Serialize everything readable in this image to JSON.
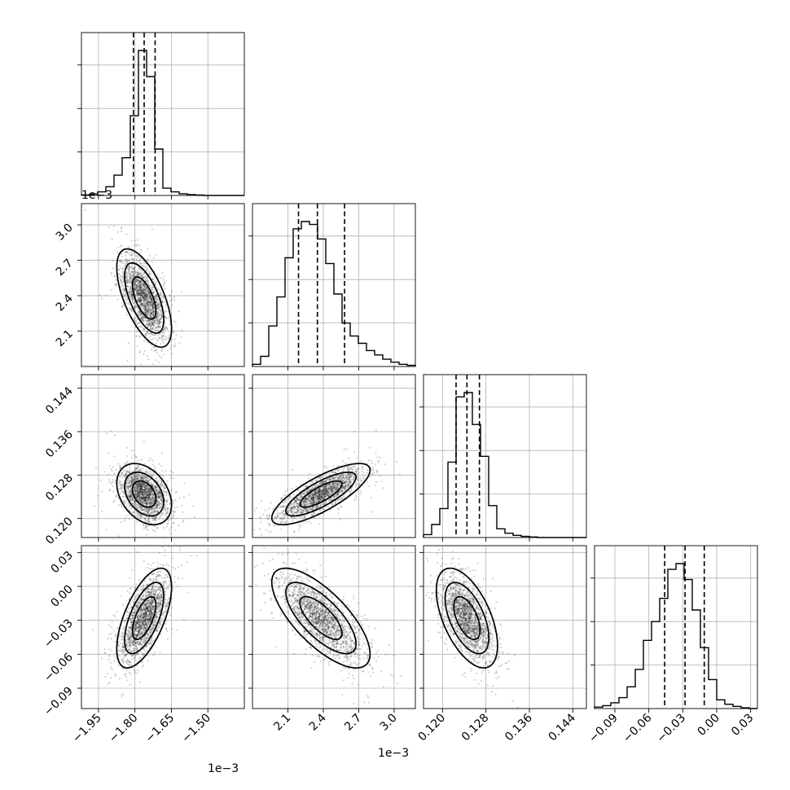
{
  "chart_data": {
    "type": "corner",
    "parameters": [
      {
        "range": [
          -2.02,
          -1.35
        ],
        "ticks": [
          -1.95,
          -1.8,
          -1.65,
          -1.5
        ],
        "tick_labels": [
          "−1.95",
          "−1.80",
          "−1.65",
          "−1.50"
        ],
        "offset_text": "1e−3",
        "mean": -1.762,
        "sd": 0.046,
        "rho_with_next_scale": 1,
        "quantiles": [
          -1.806,
          -1.762,
          -1.717
        ]
      },
      {
        "range": [
          1.8,
          3.18
        ],
        "ticks": [
          2.1,
          2.4,
          2.7,
          3.0
        ],
        "tick_labels": [
          "2.1",
          "2.4",
          "2.7",
          "3.0"
        ],
        "offset_text": "1e−3",
        "mean": 2.38,
        "sd": 0.17,
        "quantiles": [
          2.19,
          2.35,
          2.58
        ]
      },
      {
        "range": [
          0.1165,
          0.1465
        ],
        "ticks": [
          0.12,
          0.128,
          0.136,
          0.144
        ],
        "tick_labels": [
          "0.120",
          "0.128",
          "0.136",
          "0.144"
        ],
        "offset_text": "",
        "mean": 0.1245,
        "sd": 0.0023,
        "quantiles": [
          0.1225,
          0.1245,
          0.1268
        ]
      },
      {
        "range": [
          -0.108,
          0.036
        ],
        "ticks": [
          -0.09,
          -0.06,
          -0.03,
          0.0,
          0.03
        ],
        "tick_labels": [
          "−0.09",
          "−0.06",
          "−0.03",
          "0.00",
          "0.03"
        ],
        "offset_text": "",
        "mean": -0.028,
        "sd": 0.018,
        "quantiles": [
          -0.046,
          -0.028,
          -0.011
        ]
      }
    ],
    "correlations": [
      [
        1.0,
        -0.62,
        -0.35,
        0.62
      ],
      [
        -0.62,
        1.0,
        0.78,
        -0.72
      ],
      [
        -0.35,
        0.78,
        1.0,
        -0.55
      ],
      [
        0.62,
        -0.72,
        -0.55,
        1.0
      ]
    ],
    "histograms": [
      [
        0.004,
        0.01,
        0.025,
        0.06,
        0.14,
        0.26,
        0.55,
        1.0,
        0.82,
        0.32,
        0.05,
        0.025,
        0.012,
        0.006,
        0.003,
        0,
        0,
        0,
        0,
        0
      ],
      [
        0.015,
        0.07,
        0.28,
        0.48,
        0.75,
        0.95,
        1.0,
        0.98,
        0.88,
        0.71,
        0.5,
        0.3,
        0.21,
        0.16,
        0.11,
        0.08,
        0.05,
        0.03,
        0.015,
        0.008
      ],
      [
        0.02,
        0.09,
        0.2,
        0.52,
        0.97,
        1.0,
        0.78,
        0.56,
        0.22,
        0.06,
        0.03,
        0.015,
        0.008,
        0.004,
        0,
        0,
        0,
        0,
        0,
        0
      ],
      [
        0.01,
        0.02,
        0.04,
        0.075,
        0.15,
        0.27,
        0.47,
        0.6,
        0.76,
        0.96,
        1.0,
        0.89,
        0.68,
        0.42,
        0.2,
        0.06,
        0.03,
        0.015,
        0.005,
        0
      ]
    ],
    "samples_per_panel": 1800,
    "grid": true
  }
}
